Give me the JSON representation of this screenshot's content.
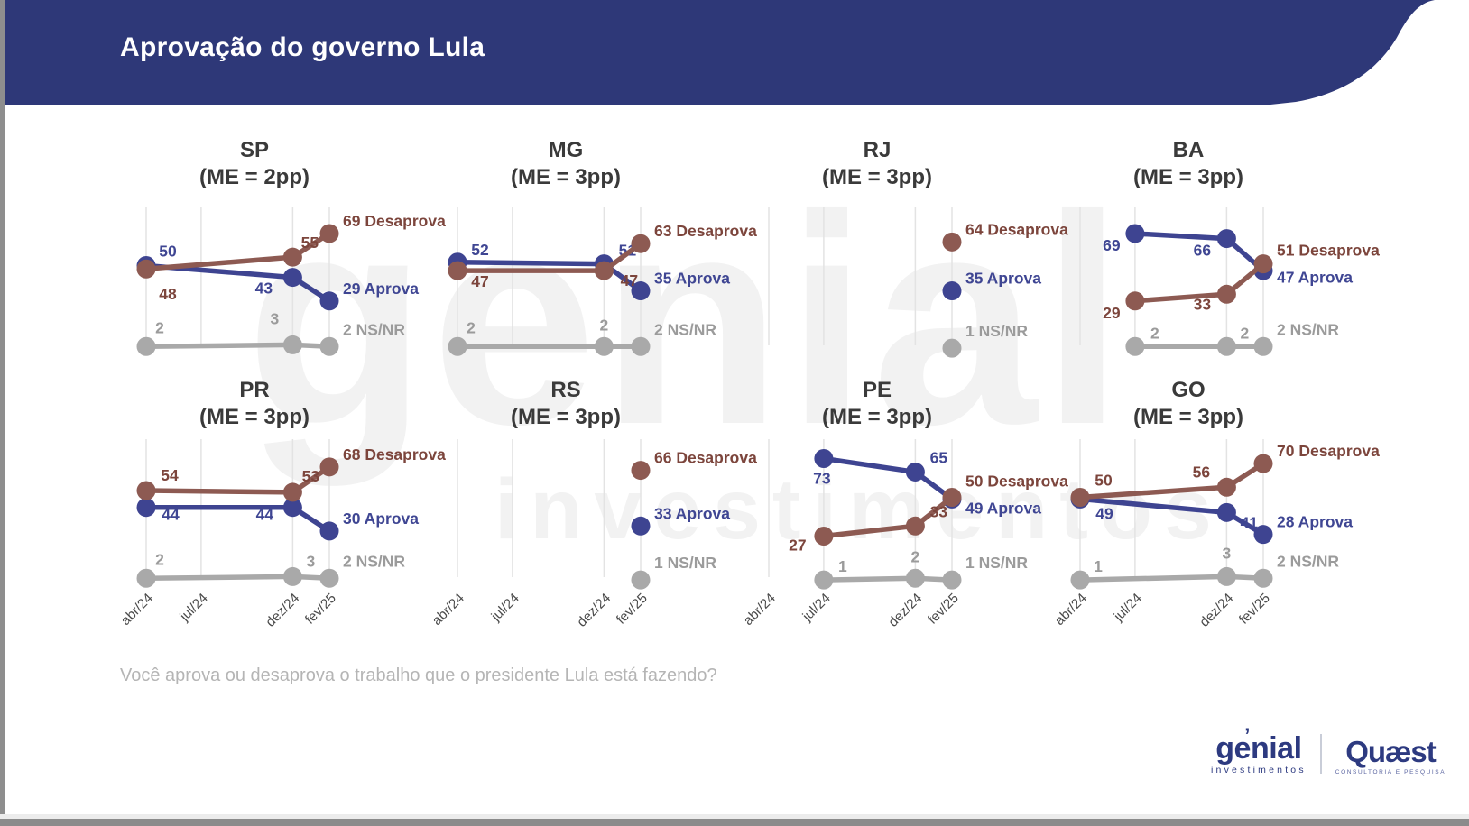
{
  "header": {
    "title": "Aprovação do governo Lula"
  },
  "question": "Você aprova ou desaprova o trabalho que o presidente Lula está fazendo?",
  "watermark": {
    "line1": "genial",
    "line2": "investimentos"
  },
  "logos": {
    "genial": {
      "name": "genial",
      "sub": "investimentos"
    },
    "quaest": {
      "name": "Quæst",
      "sub": "CONSULTORIA E PESQUISA"
    }
  },
  "colors": {
    "header_bg": "#2e3878",
    "aprova_line": "#3e4491",
    "aprova_text": "#3f4693",
    "desaprova_line": "#8d5a52",
    "desaprova_text": "#7c453c",
    "nsnr_line": "#a9a9a9",
    "nsnr_text": "#9b9b9b",
    "grid": "#e3e3e3",
    "panel_title": "#3a3a3a",
    "axis_label": "#4a4a4a",
    "question_text": "#b5b5b5",
    "logo_navy": "#2d3a80"
  },
  "series_labels": {
    "aprova": "Aprova",
    "desaprova": "Desaprova",
    "nsnr": "NS/NR"
  },
  "x_axis": {
    "labels": [
      "abr/24",
      "jul/24",
      "dez/24",
      "fev/25"
    ],
    "months": [
      0,
      3,
      8,
      10
    ]
  },
  "chart_data": [
    {
      "type": "line",
      "state": "SP",
      "margin_of_error": "(ME = 2pp)",
      "months": [
        0,
        8,
        10
      ],
      "series": {
        "aprova": {
          "values": [
            50,
            43,
            29
          ],
          "offsets": [
            [
              24,
              -10
            ],
            [
              -32,
              18
            ]
          ]
        },
        "desaprova": {
          "values": [
            48,
            55,
            69
          ],
          "offsets": [
            [
              24,
              34
            ],
            [
              19,
              -10
            ]
          ]
        },
        "nsnr": {
          "values": [
            2,
            3,
            2
          ],
          "offsets": [
            [
              15,
              -15
            ],
            [
              -20,
              -23
            ]
          ]
        }
      }
    },
    {
      "type": "line",
      "state": "MG",
      "margin_of_error": "(ME = 3pp)",
      "months": [
        0,
        8,
        10
      ],
      "series": {
        "aprova": {
          "values": [
            52,
            51,
            35
          ],
          "offsets": [
            [
              25,
              -8
            ],
            [
              26,
              -9
            ]
          ]
        },
        "desaprova": {
          "values": [
            47,
            47,
            63
          ],
          "offsets": [
            [
              25,
              18
            ],
            [
              28,
              17
            ]
          ]
        },
        "nsnr": {
          "values": [
            2,
            2,
            2
          ],
          "offsets": [
            [
              15,
              -15
            ],
            [
              0,
              -18
            ]
          ]
        }
      }
    },
    {
      "type": "line",
      "state": "RJ",
      "margin_of_error": "(ME = 3pp)",
      "months": [
        10
      ],
      "series": {
        "aprova": {
          "values": [
            35
          ],
          "offsets": []
        },
        "desaprova": {
          "values": [
            64
          ],
          "offsets": []
        },
        "nsnr": {
          "values": [
            1
          ],
          "offsets": []
        }
      }
    },
    {
      "type": "line",
      "state": "BA",
      "margin_of_error": "(ME = 3pp)",
      "months": [
        3,
        8,
        10
      ],
      "series": {
        "aprova": {
          "values": [
            69,
            66,
            47
          ],
          "offsets": [
            [
              -26,
              19
            ],
            [
              -27,
              19
            ]
          ]
        },
        "desaprova": {
          "values": [
            29,
            33,
            51
          ],
          "offsets": [
            [
              -26,
              19
            ],
            [
              -27,
              17
            ]
          ]
        },
        "nsnr": {
          "values": [
            2,
            2,
            2
          ],
          "offsets": [
            [
              22,
              -9
            ],
            [
              20,
              -9
            ]
          ]
        }
      }
    },
    {
      "type": "line",
      "state": "PR",
      "margin_of_error": "(ME = 3pp)",
      "months": [
        0,
        8,
        10
      ],
      "series": {
        "aprova": {
          "values": [
            44,
            44,
            30
          ],
          "offsets": [
            [
              27,
              14
            ],
            [
              -31,
              14
            ]
          ]
        },
        "desaprova": {
          "values": [
            54,
            53,
            68
          ],
          "offsets": [
            [
              26,
              -11
            ],
            [
              20,
              -12
            ]
          ]
        },
        "nsnr": {
          "values": [
            2,
            3,
            2
          ],
          "offsets": [
            [
              15,
              -15
            ],
            [
              20,
              -11
            ]
          ]
        }
      }
    },
    {
      "type": "line",
      "state": "RS",
      "margin_of_error": "(ME = 3pp)",
      "months": [
        10
      ],
      "series": {
        "aprova": {
          "values": [
            33
          ],
          "offsets": []
        },
        "desaprova": {
          "values": [
            66
          ],
          "offsets": []
        },
        "nsnr": {
          "values": [
            1
          ],
          "offsets": []
        }
      }
    },
    {
      "type": "line",
      "state": "PE",
      "margin_of_error": "(ME = 3pp)",
      "months": [
        3,
        8,
        10
      ],
      "series": {
        "aprova": {
          "values": [
            73,
            65,
            49
          ],
          "offsets": [
            [
              -2,
              28
            ],
            [
              26,
              -10
            ]
          ]
        },
        "desaprova": {
          "values": [
            27,
            33,
            50
          ],
          "offsets": [
            [
              -29,
              16
            ],
            [
              26,
              -10
            ]
          ]
        },
        "nsnr": {
          "values": [
            1,
            2,
            1
          ],
          "offsets": [
            [
              21,
              -9
            ],
            [
              0,
              -18
            ]
          ]
        }
      }
    },
    {
      "type": "line",
      "state": "GO",
      "margin_of_error": "(ME = 3pp)",
      "months": [
        0,
        8,
        10
      ],
      "series": {
        "aprova": {
          "values": [
            49,
            41,
            28
          ],
          "offsets": [
            [
              27,
              22
            ],
            [
              25,
              17
            ]
          ]
        },
        "desaprova": {
          "values": [
            50,
            56,
            70
          ],
          "offsets": [
            [
              26,
              -13
            ],
            [
              -28,
              -11
            ]
          ]
        },
        "nsnr": {
          "values": [
            1,
            3,
            2
          ],
          "offsets": [
            [
              20,
              -9
            ],
            [
              0,
              -20
            ]
          ]
        }
      }
    }
  ]
}
